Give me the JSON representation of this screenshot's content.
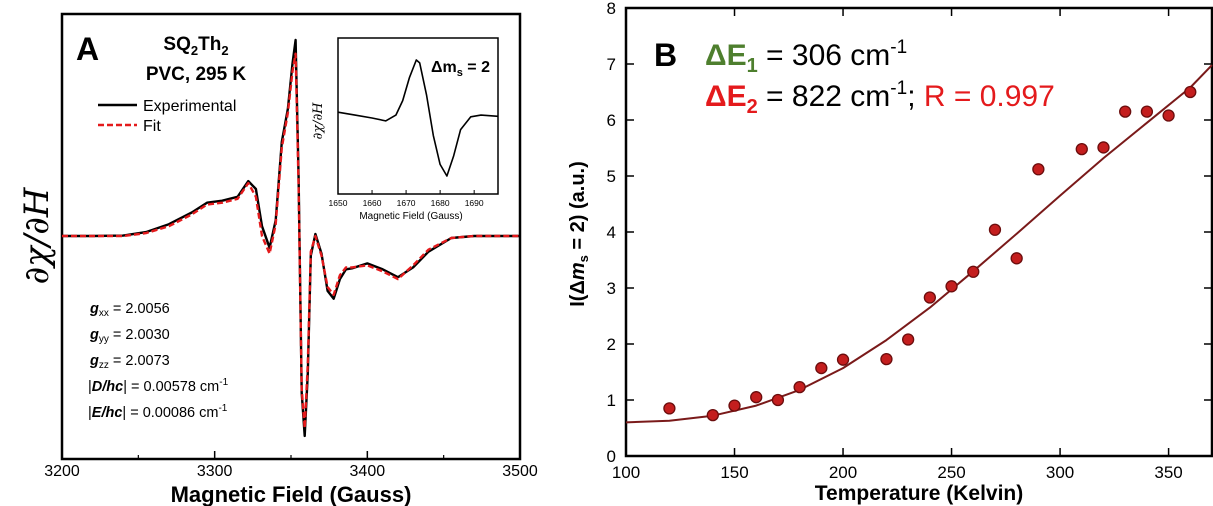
{
  "colors": {
    "experimental": "#000000",
    "fit": "#e41a1c",
    "green": "#4e7f2e",
    "red": "#e41a1c",
    "points": "#c41e1e",
    "points_edge": "#6b0d0d",
    "curve": "#7a1a1a"
  },
  "chart_data": [
    {
      "type": "line",
      "panel_label": "A",
      "title_line1": "SQ",
      "title_sub1": "2",
      "title_mid": "Th",
      "title_sub2": "2",
      "title_line2": "PVC, 295 K",
      "xlabel": "Magnetic Field (Gauss)",
      "ylabel": "∂χ/∂H",
      "xlim": [
        3200,
        3500
      ],
      "x_ticks": [
        "3200",
        "3300",
        "3400",
        "3500"
      ],
      "legend": {
        "placement": "upper-left",
        "entries": [
          "Experimental",
          "Fit"
        ]
      },
      "series": [
        {
          "name": "Experimental",
          "x": [
            3200,
            3220,
            3240,
            3255,
            3270,
            3285,
            3295,
            3305,
            3315,
            3322,
            3327,
            3331,
            3336,
            3340,
            3344,
            3348,
            3351,
            3353,
            3355,
            3357,
            3359,
            3361,
            3363,
            3366,
            3370,
            3374,
            3378,
            3382,
            3386,
            3390,
            3400,
            3410,
            3420,
            3430,
            3440,
            3455,
            3470,
            3500
          ],
          "y": [
            0,
            0,
            0.002,
            0.02,
            0.06,
            0.12,
            0.17,
            0.18,
            0.2,
            0.28,
            0.24,
            0.05,
            -0.06,
            0.08,
            0.48,
            0.65,
            0.88,
            1.0,
            0.3,
            -0.8,
            -1.02,
            -0.7,
            -0.1,
            0.01,
            -0.09,
            -0.28,
            -0.32,
            -0.22,
            -0.17,
            -0.165,
            -0.14,
            -0.17,
            -0.21,
            -0.16,
            -0.08,
            -0.01,
            0,
            0
          ]
        },
        {
          "name": "Fit",
          "x": [
            3200,
            3220,
            3240,
            3255,
            3270,
            3285,
            3295,
            3305,
            3315,
            3322,
            3327,
            3331,
            3336,
            3340,
            3344,
            3348,
            3351,
            3353,
            3355,
            3357,
            3359,
            3361,
            3363,
            3366,
            3370,
            3374,
            3378,
            3382,
            3386,
            3390,
            3400,
            3410,
            3420,
            3430,
            3440,
            3455,
            3470,
            3500
          ],
          "y": [
            0,
            0,
            0.0,
            0.015,
            0.05,
            0.11,
            0.16,
            0.17,
            0.19,
            0.27,
            0.2,
            0.0,
            -0.09,
            0.06,
            0.45,
            0.63,
            0.84,
            0.93,
            0.25,
            -0.78,
            -0.98,
            -0.65,
            -0.08,
            0.0,
            -0.1,
            -0.26,
            -0.3,
            -0.2,
            -0.16,
            -0.16,
            -0.15,
            -0.18,
            -0.22,
            -0.15,
            -0.07,
            -0.01,
            0,
            0
          ]
        }
      ],
      "params": [
        {
          "sym": "g",
          "sub": "xx",
          "rest": " = 2.0056"
        },
        {
          "sym": "g",
          "sub": "yy",
          "rest": " = 2.0030"
        },
        {
          "sym": "g",
          "sub": "zz",
          "rest": " = 2.0073"
        },
        {
          "pre": "|",
          "sym": "D/hc",
          "rest": "| = 0.00578 cm",
          "sup": "-1"
        },
        {
          "pre": "|",
          "sym": "E/hc",
          "rest": "| = 0.00086 cm",
          "sup": "-1"
        }
      ],
      "inset": {
        "type": "line",
        "label": "Δm",
        "label_sub": "s",
        "label_rest": " = 2",
        "xlabel": "Magnetic Field (Gauss)",
        "ylabel": "∂χ/∂H",
        "xlim": [
          1650,
          1697
        ],
        "x_ticks": [
          "1650",
          "1660",
          "1670",
          "1680",
          "1690"
        ],
        "series": [
          {
            "name": "Experimental",
            "x": [
              1650,
              1655,
              1660,
              1664,
              1667,
              1669,
              1671,
              1673,
              1674,
              1676,
              1678,
              1680,
              1682,
              1684,
              1686,
              1689,
              1692,
              1697
            ],
            "y": [
              0.1,
              0.05,
              0.0,
              -0.05,
              0.05,
              0.3,
              0.7,
              1.0,
              0.95,
              0.4,
              -0.3,
              -0.8,
              -1.0,
              -0.65,
              -0.2,
              0.02,
              0.05,
              0.03
            ]
          }
        ]
      }
    },
    {
      "type": "scatter",
      "panel_label": "B",
      "ann1_sym": "ΔE",
      "ann1_sub": "1",
      "ann1_rest": " = 306 cm",
      "ann1_sup": "-1",
      "ann2_sym": "ΔE",
      "ann2_sub": "2",
      "ann2_rest": " = 822 cm",
      "ann2_sup": "-1",
      "ann2_tail": "; ",
      "ann2_r": "R = 0.997",
      "xlabel": "Temperature (Kelvin)",
      "ylabel_pre": "I(Δ",
      "ylabel_m": "m",
      "ylabel_sub": "s",
      "ylabel_post": " = 2) (a.u.)",
      "xlim": [
        100,
        370
      ],
      "ylim": [
        0,
        8
      ],
      "x_ticks": [
        "100",
        "150",
        "200",
        "250",
        "300",
        "350"
      ],
      "y_ticks": [
        "0",
        "1",
        "2",
        "3",
        "4",
        "5",
        "6",
        "7",
        "8"
      ],
      "series": [
        {
          "name": "data",
          "x": [
            120,
            140,
            150,
            160,
            170,
            180,
            190,
            200,
            220,
            230,
            240,
            250,
            260,
            270,
            280,
            290,
            310,
            320,
            330,
            340,
            350,
            360
          ],
          "y": [
            0.85,
            0.73,
            0.9,
            1.05,
            1.0,
            1.23,
            1.57,
            1.72,
            1.73,
            2.08,
            2.83,
            3.03,
            3.29,
            4.04,
            3.53,
            5.12,
            5.48,
            5.51,
            6.15,
            6.15,
            6.08,
            6.5
          ]
        },
        {
          "name": "fit",
          "x": [
            100,
            120,
            140,
            160,
            180,
            200,
            220,
            240,
            260,
            280,
            300,
            320,
            340,
            360,
            370
          ],
          "y": [
            0.6,
            0.63,
            0.72,
            0.9,
            1.18,
            1.57,
            2.07,
            2.65,
            3.3,
            3.97,
            4.65,
            5.32,
            5.95,
            6.58,
            6.98
          ]
        }
      ]
    }
  ]
}
